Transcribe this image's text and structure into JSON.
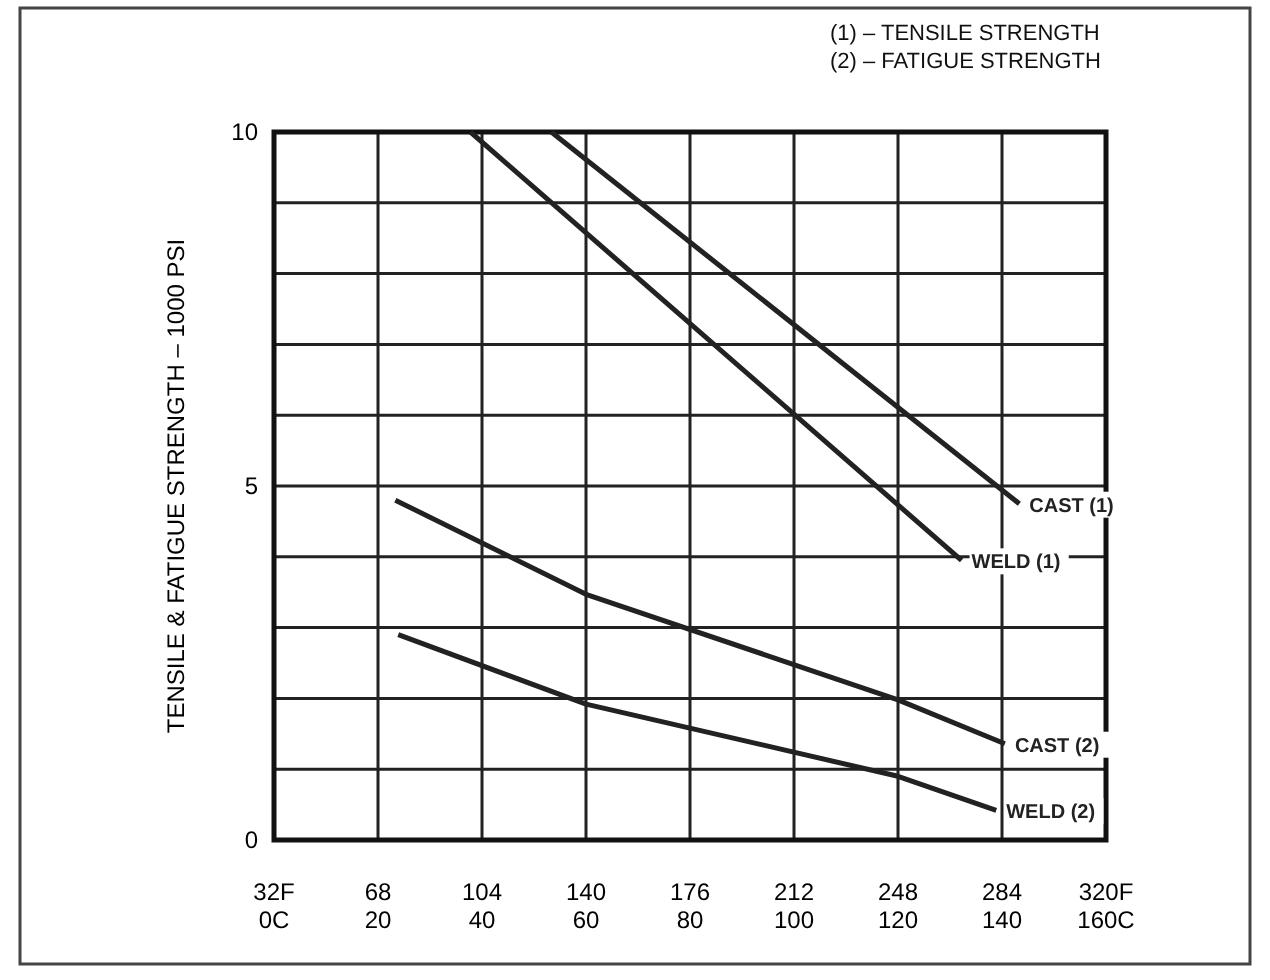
{
  "chart_data": {
    "type": "line",
    "ylabel": "TENSILE & FATIGUE STRENGTH – 1000 PSI",
    "annotations": [
      "(1) – TENSILE STRENGTH",
      "(2) – FATIGUE STRENGTH"
    ],
    "xlim": [
      32,
      320
    ],
    "ylim": [
      0,
      10
    ],
    "xticks": [
      {
        "value": 32,
        "label": "32F"
      },
      68,
      104,
      140,
      176,
      212,
      248,
      284,
      {
        "value": 320,
        "label": "320F"
      }
    ],
    "x2lim": [
      0,
      160
    ],
    "x2ticks": [
      {
        "value": 0,
        "label": "0C"
      },
      20,
      40,
      60,
      80,
      100,
      120,
      140,
      {
        "value": 160,
        "label": "160C"
      }
    ],
    "yticks": [
      0,
      {
        "value": 1,
        "label": null
      },
      {
        "value": 2,
        "label": null
      },
      {
        "value": 3,
        "label": null
      },
      {
        "value": 4,
        "label": null
      },
      5,
      {
        "value": 6,
        "label": null
      },
      {
        "value": 7,
        "label": null
      },
      {
        "value": 8,
        "label": null
      },
      {
        "value": 9,
        "label": null
      },
      10
    ],
    "grid": true,
    "marker": "none",
    "line_style": "solid",
    "series": [
      {
        "name": "CAST (1)",
        "color": "#222222",
        "x": [
          128,
          290
        ],
        "values": [
          10,
          4.75
        ]
      },
      {
        "name": "WELD (1)",
        "color": "#222222",
        "x": [
          100,
          270
        ],
        "values": [
          10,
          3.95
        ]
      },
      {
        "name": "CAST (2)",
        "color": "#222222",
        "x": [
          74,
          140,
          248,
          285
        ],
        "values": [
          4.8,
          3.47,
          1.98,
          1.36
        ]
      },
      {
        "name": "WELD (2)",
        "color": "#222222",
        "x": [
          75,
          140,
          248,
          282
        ],
        "values": [
          2.9,
          1.92,
          0.9,
          0.42
        ]
      }
    ]
  }
}
